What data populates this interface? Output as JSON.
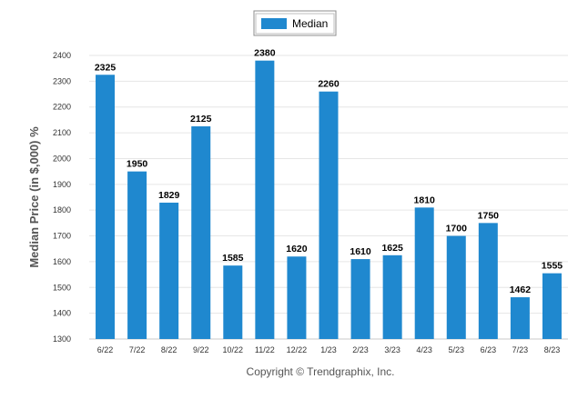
{
  "chart_data": {
    "type": "bar",
    "legend": {
      "label": "Median",
      "placement": "top-center"
    },
    "ylabel": "Median Price (in $,000) %",
    "xlabel": "",
    "ylim": [
      1300,
      2400
    ],
    "yticks": [
      1300,
      1400,
      1500,
      1600,
      1700,
      1800,
      1900,
      2000,
      2100,
      2200,
      2300,
      2400
    ],
    "grid": true,
    "categories": [
      "6/22",
      "7/22",
      "8/22",
      "9/22",
      "10/22",
      "11/22",
      "12/22",
      "1/23",
      "2/23",
      "3/23",
      "4/23",
      "5/23",
      "6/23",
      "7/23",
      "8/23"
    ],
    "series": [
      {
        "name": "Median",
        "values": [
          2325,
          1950,
          1829,
          2125,
          1585,
          2380,
          1620,
          2260,
          1610,
          1625,
          1810,
          1700,
          1750,
          1462,
          1555
        ]
      }
    ],
    "data_labels": [
      "2325",
      "1950",
      "1829",
      "2125",
      "1585",
      "2380",
      "1620",
      "2260",
      "1610",
      "1625",
      "1810",
      "1700",
      "1750",
      "1462",
      "1555"
    ],
    "bar_color": "#1f88cf",
    "footer": "Copyright © Trendgraphix, Inc."
  }
}
